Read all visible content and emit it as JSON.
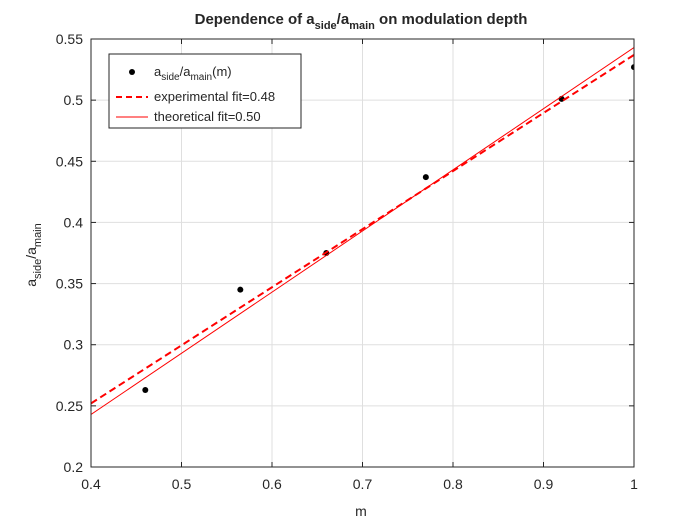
{
  "chart_data": {
    "type": "scatter",
    "title": {
      "prefix": "Dependence of a",
      "sub1": "side",
      "mid": "/a",
      "sub2": "main",
      "suffix": " on modulation depth"
    },
    "xlabel": "m",
    "ylabel": {
      "a": "a",
      "sub1": "side",
      "mid": "/a",
      "sub2": "main"
    },
    "xlim": [
      0.4,
      1.0
    ],
    "ylim": [
      0.2,
      0.55
    ],
    "xticks": [
      0.4,
      0.5,
      0.6,
      0.7,
      0.8,
      0.9,
      1.0
    ],
    "xtick_labels": [
      "0.4",
      "0.5",
      "0.6",
      "0.7",
      "0.8",
      "0.9",
      "1"
    ],
    "yticks": [
      0.2,
      0.25,
      0.3,
      0.35,
      0.4,
      0.45,
      0.5,
      0.55
    ],
    "ytick_labels": [
      "0.2",
      "0.25",
      "0.3",
      "0.35",
      "0.4",
      "0.45",
      "0.5",
      "0.55"
    ],
    "grid": true,
    "legend_position": "top-left",
    "series": [
      {
        "kind": "points",
        "name_parts": {
          "a": "a",
          "sub1": "side",
          "mid": "/a",
          "sub2": "main",
          "suffix": "(m)"
        },
        "color": "#000000",
        "x": [
          0.46,
          0.565,
          0.66,
          0.77,
          0.92,
          1.0
        ],
        "y": [
          0.263,
          0.345,
          0.375,
          0.437,
          0.501,
          0.527
        ]
      },
      {
        "kind": "dashed-line",
        "name": "experimental fit=0.48",
        "color": "#ff0000",
        "x": [
          0.4,
          1.0
        ],
        "y": [
          0.252,
          0.537
        ]
      },
      {
        "kind": "solid-line",
        "name": "theoretical fit=0.50",
        "color": "#ff0000",
        "x": [
          0.4,
          1.0
        ],
        "y": [
          0.243,
          0.543
        ]
      }
    ]
  }
}
